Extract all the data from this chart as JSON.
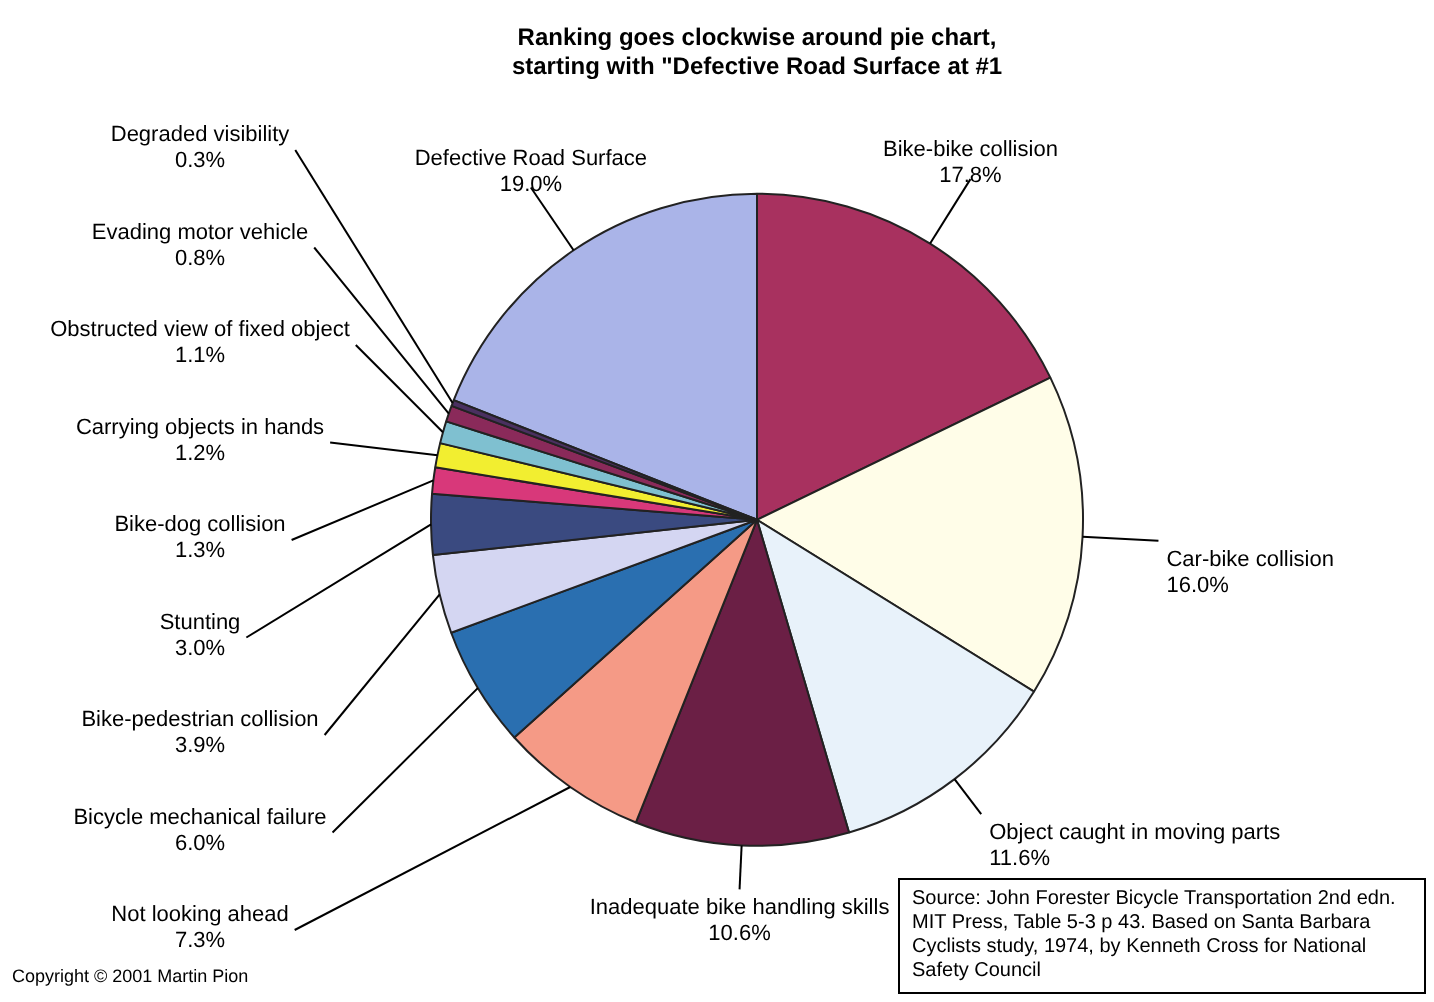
{
  "chart_data": {
    "type": "pie",
    "title": [
      "Ranking goes clockwise around pie chart,",
      "starting with \"Defective Road Surface at #1"
    ],
    "categories": [
      "Defective Road Surface",
      "Bike-bike collision",
      "Car-bike collision",
      "Object caught in moving parts",
      "Inadequate bike handling skills",
      "Not looking ahead",
      "Bicycle mechanical failure",
      "Bike-pedestrian collision",
      "Stunting",
      "Bike-dog collision",
      "Carrying objects in hands",
      "Obstructed view of fixed object",
      "Evading motor vehicle",
      "Degraded visibility"
    ],
    "values": [
      19.0,
      17.8,
      16.0,
      11.6,
      10.6,
      7.3,
      6.0,
      3.9,
      3.0,
      1.3,
      1.2,
      1.1,
      0.8,
      0.3
    ],
    "value_labels": [
      "19.0%",
      "17.8%",
      "16.0%",
      "11.6%",
      "10.6%",
      "7.3%",
      "6.0%",
      "3.9%",
      "3.0%",
      "1.3%",
      "1.2%",
      "1.1%",
      "0.8%",
      "0.3%"
    ],
    "colors": [
      "#aab4e8",
      "#a8315f",
      "#fffde8",
      "#e8f2fa",
      "#6b1f45",
      "#f59a86",
      "#2a6fb0",
      "#d4d6f2",
      "#3a4a80",
      "#d8387a",
      "#f2ee30",
      "#7fc0d0",
      "#8a2a5a",
      "#4a3060"
    ],
    "legend": false,
    "annotations": [
      "Source: John Forester Bicycle Transportation 2nd edn. MIT Press, Table 5-3 p 43. Based on Santa Barbara Cyclists study, 1974, by Kenneth Cross for National Safety Council",
      "Copyright © 2001 Martin Pion"
    ]
  }
}
